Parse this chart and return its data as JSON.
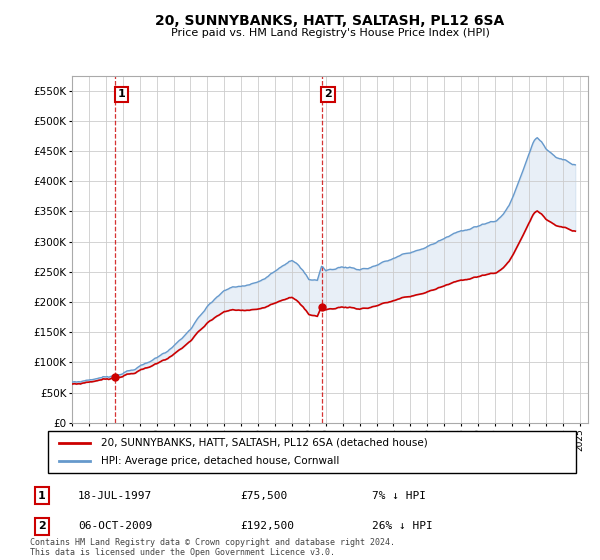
{
  "title": "20, SUNNYBANKS, HATT, SALTASH, PL12 6SA",
  "subtitle": "Price paid vs. HM Land Registry's House Price Index (HPI)",
  "hpi_color": "#6699cc",
  "price_color": "#cc0000",
  "vline_color": "#cc0000",
  "fill_color": "#ddeeff",
  "background_color": "#ffffff",
  "grid_color": "#cccccc",
  "ylim": [
    0,
    575000
  ],
  "yticks": [
    0,
    50000,
    100000,
    150000,
    200000,
    250000,
    300000,
    350000,
    400000,
    450000,
    500000,
    550000
  ],
  "ytick_labels": [
    "£0",
    "£50K",
    "£100K",
    "£150K",
    "£200K",
    "£250K",
    "£300K",
    "£350K",
    "£400K",
    "£450K",
    "£500K",
    "£550K"
  ],
  "xmin": 1995.0,
  "xmax": 2025.5,
  "sale1_x": 1997.54,
  "sale1_y": 75500,
  "sale2_x": 2009.76,
  "sale2_y": 192500,
  "legend_house_label": "20, SUNNYBANKS, HATT, SALTASH, PL12 6SA (detached house)",
  "legend_hpi_label": "HPI: Average price, detached house, Cornwall",
  "table_rows": [
    {
      "num": "1",
      "date": "18-JUL-1997",
      "price": "£75,500",
      "pct": "7% ↓ HPI"
    },
    {
      "num": "2",
      "date": "06-OCT-2009",
      "price": "£192,500",
      "pct": "26% ↓ HPI"
    }
  ],
  "footer": "Contains HM Land Registry data © Crown copyright and database right 2024.\nThis data is licensed under the Open Government Licence v3.0."
}
